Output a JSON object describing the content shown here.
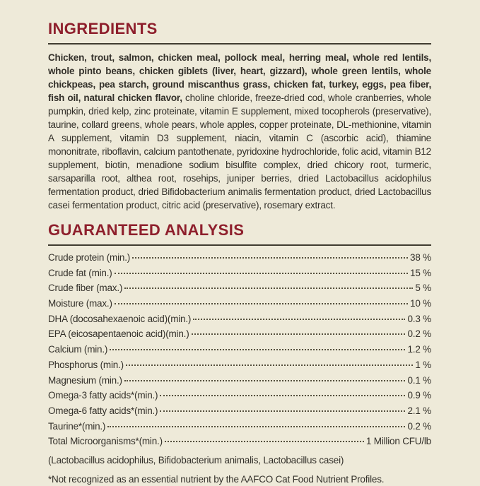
{
  "page": {
    "background_color": "#eeead9",
    "accent_color": "#8e1f2c",
    "text_color": "#33302a"
  },
  "ingredients": {
    "heading": "INGREDIENTS",
    "primary_text": "Chicken, trout, salmon, chicken meal, pollock meal, herring meal, whole red lentils, whole pinto beans, chicken giblets (liver, heart, gizzard), whole green lentils, whole chickpeas, pea starch, ground miscanthus grass, chicken fat, turkey, eggs, pea fiber, fish oil, natural chicken flavor,",
    "secondary_text": " choline chloride, freeze-dried cod, whole cranberries, whole pumpkin, dried kelp, zinc proteinate, vitamin E supplement, mixed tocopherols (preservative), taurine, collard greens, whole pears, whole apples, copper proteinate, DL-methionine, vitamin A supplement, vitamin D3 supplement, niacin, vitamin C (ascorbic acid), thiamine mononitrate, riboflavin, calcium pantothenate, pyridoxine hydrochloride, folic acid, vitamin B12 supplement, biotin, menadione sodium bisulfite complex, dried chicory root, turmeric, sarsaparilla root, althea root, rosehips, juniper berries, dried Lactobacillus acidophilus fermentation product, dried Bifidobacterium animalis fermentation product, dried Lactobacillus casei fermentation product, citric acid (preservative), rosemary extract."
  },
  "analysis": {
    "heading": "GUARANTEED ANALYSIS",
    "rows": [
      {
        "label": "Crude protein (min.)",
        "value": "38 %"
      },
      {
        "label": "Crude fat (min.)",
        "value": "15 %"
      },
      {
        "label": "Crude fiber (max.)",
        "value": "5 %"
      },
      {
        "label": "Moisture (max.)",
        "value": "10 %"
      },
      {
        "label": "DHA (docosahexaenoic acid)(min.)",
        "value": "0.3 %"
      },
      {
        "label": "EPA (eicosapentaenoic acid)(min.)",
        "value": "0.2 %"
      },
      {
        "label": "Calcium (min.)",
        "value": "1.2 %"
      },
      {
        "label": "Phosphorus (min.)",
        "value": "1 %"
      },
      {
        "label": "Magnesium (min.)",
        "value": "0.1 %"
      },
      {
        "label": "Omega-3 fatty acids*(min.)",
        "value": "0.9 %"
      },
      {
        "label": "Omega-6 fatty acids*(min.)",
        "value": "2.1 %"
      },
      {
        "label": "Taurine*(min.)",
        "value": "0.2 %"
      },
      {
        "label": "Total Microorganisms*(min.)",
        "value": "1 Million CFU/lb"
      }
    ],
    "microorganisms_detail": "(Lactobacillus acidophilus, Bifidobacterium animalis, Lactobacillus casei)",
    "footnote": "*Not recognized as an essential nutrient by the AAFCO Cat Food Nutrient Profiles."
  }
}
